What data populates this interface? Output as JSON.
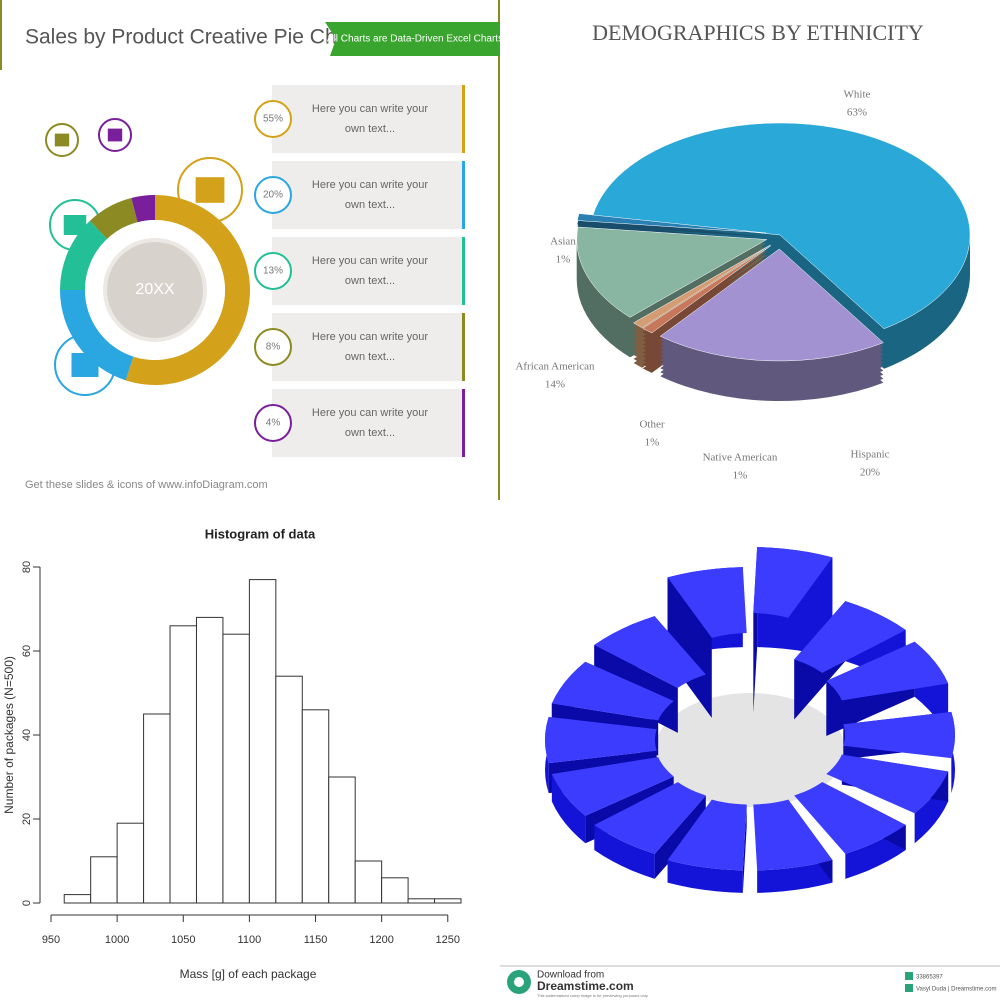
{
  "chart_data": [
    {
      "type": "donut",
      "title": "Sales by Product Creative Pie Chart",
      "badge": "All Charts are Data-Driven Excel Charts",
      "center_label": "20XX",
      "values": [
        55,
        20,
        13,
        8,
        4
      ],
      "value_labels": [
        "55%",
        "20%",
        "13%",
        "8%",
        "4%"
      ],
      "colors": [
        "#d4a21a",
        "#2aa6e0",
        "#23bf96",
        "#8c8a22",
        "#7a1f9c"
      ],
      "texts": [
        [
          "Here you can write your",
          "own text..."
        ],
        [
          "Here you can write your",
          "own text..."
        ],
        [
          "Here you can write your",
          "own text..."
        ],
        [
          "Here you can write your",
          "own text..."
        ],
        [
          "Here you can write your",
          "own text..."
        ]
      ],
      "footer": "Get these slides & icons of www.infoDiagram.com"
    },
    {
      "type": "pie",
      "title": "DEMOGRAPHICS BY ETHNICITY",
      "categories": [
        "White",
        "Hispanic",
        "Native American",
        "Other",
        "African American",
        "Asian"
      ],
      "values": [
        63,
        20,
        1,
        1,
        14,
        1
      ],
      "value_labels": [
        "63%",
        "20%",
        "1%",
        "1%",
        "14%",
        "1%"
      ],
      "colors": [
        "#2aa8d8",
        "#a292d2",
        "#c8785a",
        "#d49c72",
        "#88b6a2",
        "#2a80b2"
      ]
    },
    {
      "type": "histogram",
      "title": "Histogram of data",
      "xlabel": "Mass [g] of each package",
      "ylabel": "Number of packages (N=500)",
      "bins": [
        960,
        980,
        1000,
        1020,
        1040,
        1060,
        1080,
        1100,
        1120,
        1140,
        1160,
        1180,
        1200,
        1220,
        1240,
        1260
      ],
      "values": [
        2,
        11,
        19,
        45,
        66,
        68,
        64,
        77,
        54,
        46,
        30,
        10,
        6,
        1,
        1
      ],
      "xlim": [
        950,
        1260
      ],
      "xticks": [
        950,
        1000,
        1050,
        1100,
        1150,
        1200,
        1250
      ],
      "ylim": [
        0,
        80
      ],
      "yticks": [
        0,
        20,
        40,
        60,
        80
      ]
    }
  ],
  "stock_image": {
    "download": "Download from",
    "site": "Dreamstime.com",
    "note": "This watermarked comp image is for previewing purposes only.",
    "id": "33865397",
    "credit": "Vasyl Duda | Dreamstime.com"
  }
}
